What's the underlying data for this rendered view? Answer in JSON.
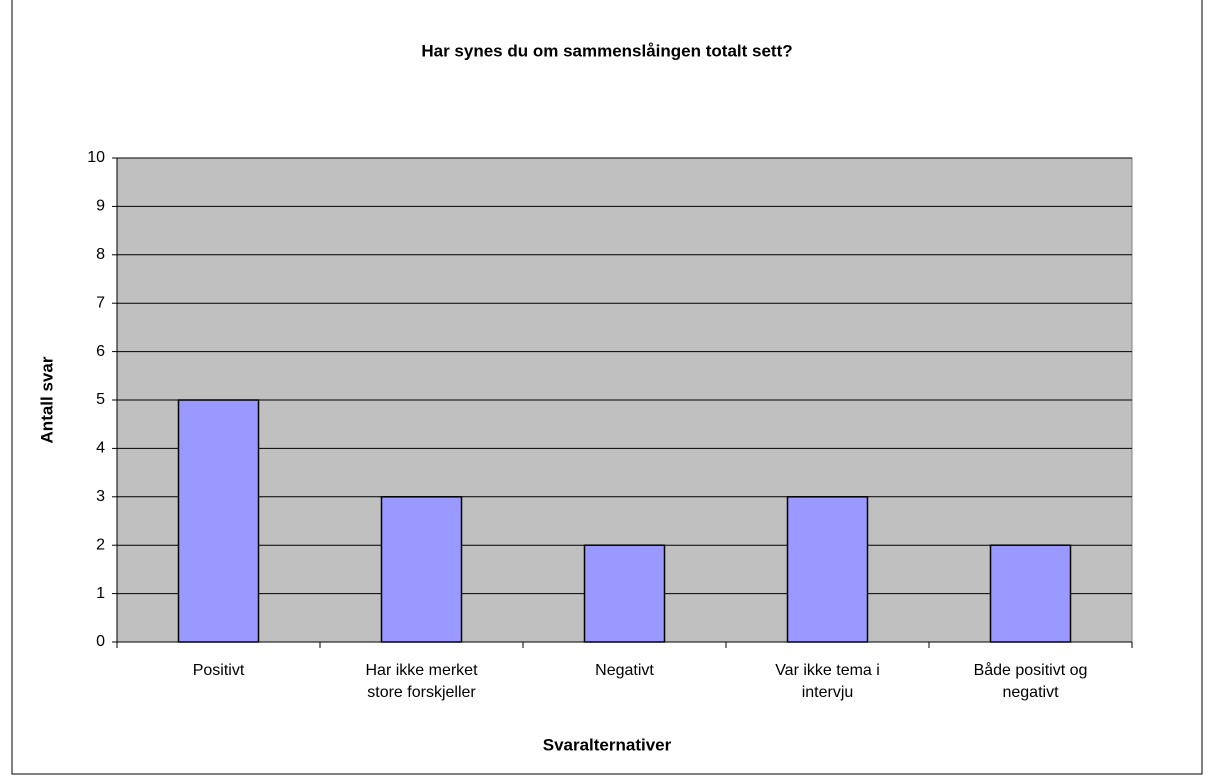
{
  "chart_data": {
    "type": "bar",
    "title": "Har synes du om sammenslåingen totalt sett?",
    "x_label": "Svaralternativer",
    "y_label": "Antall svar",
    "categories": [
      "Positivt",
      "Har ikke merket store forskjeller",
      "Negativt",
      "Var ikke tema i intervju",
      "Både positivt og negativt"
    ],
    "values": [
      5,
      3,
      2,
      3,
      2
    ],
    "color": "#9999ff",
    "ylim": [
      0,
      10
    ],
    "yticks": [
      0,
      1,
      2,
      3,
      4,
      5,
      6,
      7,
      8,
      9,
      10
    ],
    "grid": true
  }
}
